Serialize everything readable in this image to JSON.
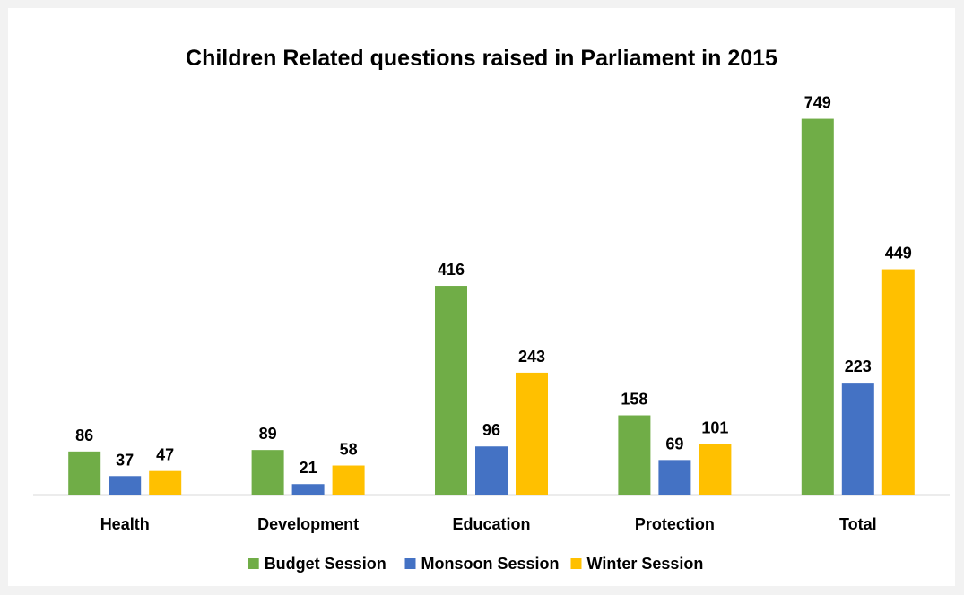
{
  "chart_data": {
    "type": "bar",
    "title": "Children Related questions raised in Parliament in 2015",
    "categories": [
      "Health",
      "Development",
      "Education",
      "Protection",
      "Total"
    ],
    "series": [
      {
        "name": "Budget Session",
        "color": "#70ad47",
        "values": [
          86,
          89,
          416,
          158,
          749
        ]
      },
      {
        "name": "Monsoon Session",
        "color": "#4472c4",
        "values": [
          37,
          21,
          96,
          69,
          223
        ]
      },
      {
        "name": "Winter Session",
        "color": "#ffc000",
        "values": [
          47,
          58,
          243,
          101,
          449
        ]
      }
    ],
    "ylim": [
      0,
      800
    ],
    "grid": false,
    "legend": "bottom"
  }
}
